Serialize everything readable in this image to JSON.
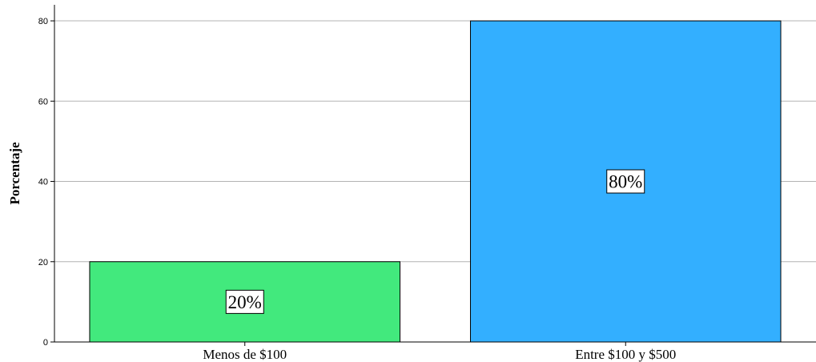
{
  "chart_data": {
    "type": "bar",
    "categories": [
      "Menos de $100",
      "Entre $100 y $500"
    ],
    "values": [
      20,
      80
    ],
    "data_labels": [
      "20%",
      "80%"
    ],
    "colors": [
      "#42E97D",
      "#33AFFF"
    ],
    "ylabel": "Porcentaje",
    "ylim": [
      0,
      84
    ],
    "yticks": [
      0,
      20,
      40,
      60,
      80
    ],
    "grid": true
  }
}
